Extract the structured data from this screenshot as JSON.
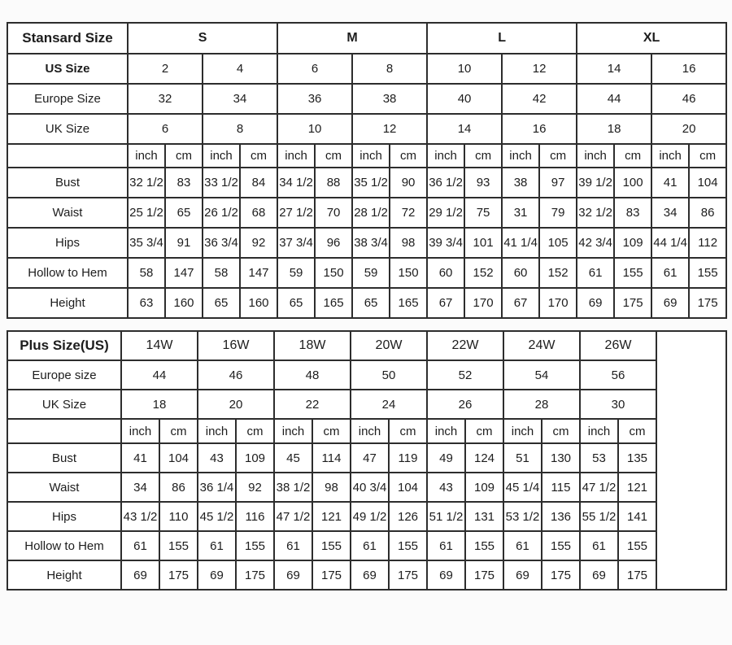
{
  "colors": {
    "border": "#2d2d2d",
    "text": "#1d1d1d",
    "cell_background": "#ffffff",
    "page_background": "#fbfbfb"
  },
  "chart_data": [
    {
      "type": "table",
      "corner_label": "Stansard Size",
      "groups": [
        "S",
        "M",
        "L",
        "XL"
      ],
      "size_rows": [
        {
          "label": "US Size",
          "bold": true,
          "values": [
            "2",
            "4",
            "6",
            "8",
            "10",
            "12",
            "14",
            "16"
          ]
        },
        {
          "label": "Europe Size",
          "bold": false,
          "values": [
            "32",
            "34",
            "36",
            "38",
            "40",
            "42",
            "44",
            "46"
          ]
        },
        {
          "label": "UK Size",
          "bold": false,
          "values": [
            "6",
            "8",
            "10",
            "12",
            "14",
            "16",
            "18",
            "20"
          ]
        }
      ],
      "units": [
        "inch",
        "cm"
      ],
      "measure_rows": [
        {
          "label": "Bust",
          "values": [
            "32 1/2",
            "83",
            "33 1/2",
            "84",
            "34 1/2",
            "88",
            "35 1/2",
            "90",
            "36 1/2",
            "93",
            "38",
            "97",
            "39 1/2",
            "100",
            "41",
            "104"
          ]
        },
        {
          "label": "Waist",
          "values": [
            "25 1/2",
            "65",
            "26 1/2",
            "68",
            "27 1/2",
            "70",
            "28 1/2",
            "72",
            "29 1/2",
            "75",
            "31",
            "79",
            "32 1/2",
            "83",
            "34",
            "86"
          ]
        },
        {
          "label": "Hips",
          "values": [
            "35 3/4",
            "91",
            "36 3/4",
            "92",
            "37 3/4",
            "96",
            "38 3/4",
            "98",
            "39 3/4",
            "101",
            "41 1/4",
            "105",
            "42 3/4",
            "109",
            "44 1/4",
            "112"
          ]
        },
        {
          "label": "Hollow to Hem",
          "values": [
            "58",
            "147",
            "58",
            "147",
            "59",
            "150",
            "59",
            "150",
            "60",
            "152",
            "60",
            "152",
            "61",
            "155",
            "61",
            "155"
          ]
        },
        {
          "label": "Height",
          "values": [
            "63",
            "160",
            "65",
            "160",
            "65",
            "165",
            "65",
            "165",
            "67",
            "170",
            "67",
            "170",
            "69",
            "175",
            "69",
            "175"
          ]
        }
      ]
    },
    {
      "type": "table",
      "corner_label": "Plus Size(US)",
      "groups": [
        "14W",
        "16W",
        "18W",
        "20W",
        "22W",
        "24W",
        "26W"
      ],
      "size_rows": [
        {
          "label": "Europe size",
          "bold": false,
          "values": [
            "44",
            "46",
            "48",
            "50",
            "52",
            "54",
            "56"
          ]
        },
        {
          "label": "UK Size",
          "bold": false,
          "values": [
            "18",
            "20",
            "22",
            "24",
            "26",
            "28",
            "30"
          ]
        }
      ],
      "units": [
        "inch",
        "cm"
      ],
      "measure_rows": [
        {
          "label": "Bust",
          "values": [
            "41",
            "104",
            "43",
            "109",
            "45",
            "114",
            "47",
            "119",
            "49",
            "124",
            "51",
            "130",
            "53",
            "135"
          ]
        },
        {
          "label": "Waist",
          "values": [
            "34",
            "86",
            "36 1/4",
            "92",
            "38 1/2",
            "98",
            "40 3/4",
            "104",
            "43",
            "109",
            "45 1/4",
            "115",
            "47 1/2",
            "121"
          ]
        },
        {
          "label": "Hips",
          "values": [
            "43 1/2",
            "110",
            "45 1/2",
            "116",
            "47 1/2",
            "121",
            "49 1/2",
            "126",
            "51 1/2",
            "131",
            "53 1/2",
            "136",
            "55 1/2",
            "141"
          ]
        },
        {
          "label": "Hollow to Hem",
          "values": [
            "61",
            "155",
            "61",
            "155",
            "61",
            "155",
            "61",
            "155",
            "61",
            "155",
            "61",
            "155",
            "61",
            "155"
          ]
        },
        {
          "label": "Height",
          "values": [
            "69",
            "175",
            "69",
            "175",
            "69",
            "175",
            "69",
            "175",
            "69",
            "175",
            "69",
            "175",
            "69",
            "175"
          ]
        }
      ]
    }
  ]
}
